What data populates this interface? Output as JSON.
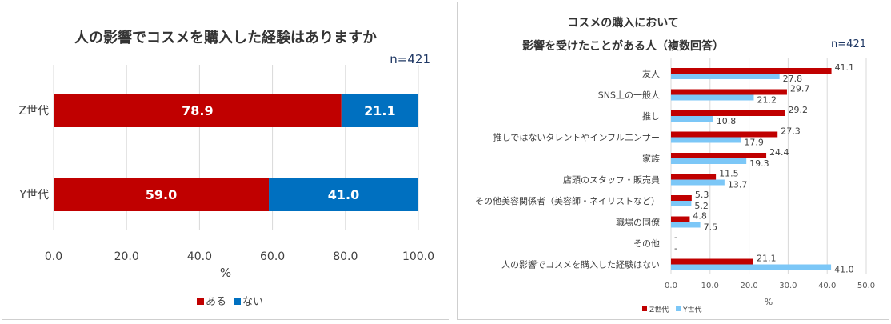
{
  "chart_data": [
    {
      "type": "bar",
      "orientation": "horizontal",
      "stacked": true,
      "title": "人の影響でコスメを購入した経験はありますか",
      "note": "n=421",
      "xlabel": "%",
      "xlim": [
        0,
        100
      ],
      "xticks": [
        "0.0",
        "20.0",
        "40.0",
        "60.0",
        "80.0",
        "100.0"
      ],
      "categories": [
        "Z世代",
        "Y世代"
      ],
      "series": [
        {
          "name": "ある",
          "color": "#c00000",
          "values": [
            78.9,
            59.0
          ]
        },
        {
          "name": "ない",
          "color": "#0070c0",
          "values": [
            21.1,
            41.0
          ]
        }
      ],
      "legend_position": "bottom",
      "grid": true
    },
    {
      "type": "bar",
      "orientation": "horizontal",
      "stacked": false,
      "title_lines": [
        "コスメの購入において",
        "影響を受けたことがある人（複数回答）"
      ],
      "note": "n=421",
      "xlabel": "%",
      "xlim": [
        0,
        50
      ],
      "xticks": [
        "0.0",
        "10.0",
        "20.0",
        "30.0",
        "40.0",
        "50.0"
      ],
      "categories": [
        "友人",
        "SNS上の一般人",
        "推し",
        "推しではないタレントやインフルエンサー",
        "家族",
        "店頭のスタッフ・販売員",
        "その他美容関係者（美容師・ネイリストなど）",
        "職場の同僚",
        "その他",
        "人の影響でコスメを購入した経験はない"
      ],
      "series": [
        {
          "name": "Z世代",
          "color": "#c00000",
          "values": [
            41.1,
            29.7,
            29.2,
            27.3,
            24.4,
            11.5,
            5.3,
            4.8,
            null,
            21.1
          ],
          "labels": [
            "41.1",
            "29.7",
            "29.2",
            "27.3",
            "24.4",
            "11.5",
            "5.3",
            "4.8",
            "-",
            "21.1"
          ]
        },
        {
          "name": "Y世代",
          "color": "#7cc7f7",
          "values": [
            27.8,
            21.2,
            10.8,
            17.9,
            19.3,
            13.7,
            5.2,
            7.5,
            null,
            41.0
          ],
          "labels": [
            "27.8",
            "21.2",
            "10.8",
            "17.9",
            "19.3",
            "13.7",
            "5.2",
            "7.5",
            "-",
            "41.0"
          ]
        }
      ],
      "legend_position": "bottom-left",
      "grid": true
    }
  ]
}
